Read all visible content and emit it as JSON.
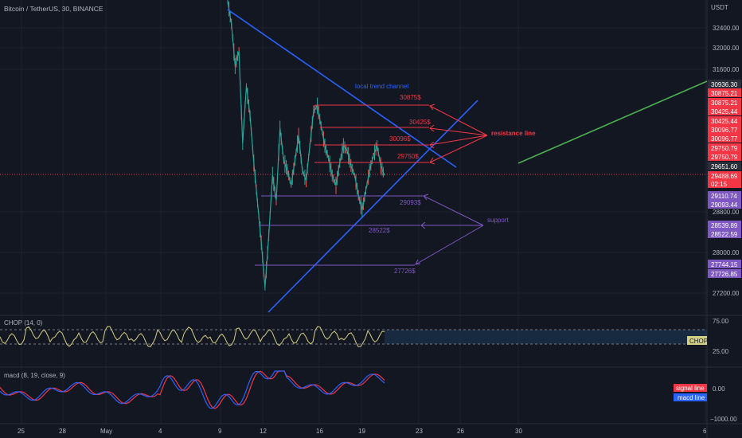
{
  "title": "Bitcoin / TetherUS, 30, BINANCE",
  "currency": "USDT",
  "colors": {
    "background": "#131722",
    "up": "#26a69a",
    "down": "#ef5350",
    "trend": "#2962ff",
    "resistance": "#f23645",
    "support": "#7e57c2",
    "green_line": "#4caf50",
    "chop": "#d4d083",
    "macd": "#2962ff",
    "signal": "#f23645"
  },
  "chart_data": {
    "type": "line",
    "price_axis": {
      "ylim": [
        26900,
        33100
      ],
      "ticks": [
        "32400.00",
        "32000.00",
        "31600.00",
        "28800.00",
        "28000.00",
        "27200.00"
      ],
      "badges": [
        {
          "label": "30936.30",
          "color": "#2a2e39"
        },
        {
          "label": "30875.21",
          "color": "#f23645"
        },
        {
          "label": "30875.21",
          "color": "#f23645"
        },
        {
          "label": "30425.44",
          "color": "#f23645"
        },
        {
          "label": "30425.44",
          "color": "#f23645"
        },
        {
          "label": "30096.77",
          "color": "#f23645"
        },
        {
          "label": "30096.77",
          "color": "#f23645"
        },
        {
          "label": "29750.79",
          "color": "#f23645"
        },
        {
          "label": "29750.79",
          "color": "#f23645"
        },
        {
          "label": "29651.60",
          "color": "#2a2e39"
        },
        {
          "label": "29488.69",
          "color": "#f23645"
        },
        {
          "label": "02:15",
          "color": "#f23645"
        },
        {
          "label": "29110.74",
          "color": "#7e57c2"
        },
        {
          "label": "29093.44",
          "color": "#7e57c2"
        },
        {
          "label": "28539.89",
          "color": "#7e57c2"
        },
        {
          "label": "28522.59",
          "color": "#7e57c2"
        },
        {
          "label": "27744.15",
          "color": "#7e57c2"
        },
        {
          "label": "27726.85",
          "color": "#7e57c2"
        }
      ]
    },
    "x_axis": {
      "ticks": [
        "25",
        "28",
        "May",
        "4",
        "9",
        "12",
        "16",
        "19",
        "23",
        "26",
        "30",
        "6"
      ]
    },
    "series": [
      {
        "values": [
          33150,
          32700,
          31850,
          32150,
          30300,
          31450,
          30850,
          29900,
          29100,
          28300,
          27400,
          28450,
          29650,
          29150,
          30600,
          29950,
          29750,
          29450,
          29950,
          30450,
          29750,
          29550,
          30250,
          30950,
          31050,
          30650,
          30250,
          30000,
          29650,
          29450,
          29900,
          30250,
          30150,
          29850,
          29650,
          29250,
          28950,
          29350,
          29750,
          30050,
          30250,
          29850,
          29650
        ]
      }
    ],
    "resistance_levels": [
      {
        "label": "30875$",
        "value": 30875.21
      },
      {
        "label": "30425$",
        "value": 30425.44
      },
      {
        "label": "30096$",
        "value": 30096.77
      },
      {
        "label": "29750$",
        "value": 29750.79
      }
    ],
    "support_levels": [
      {
        "label": "29093$",
        "value": 29093.44
      },
      {
        "label": "28522$",
        "value": 28522.59
      },
      {
        "label": "27726$",
        "value": 27726.85
      }
    ],
    "annotations": {
      "resistance": "resistance line",
      "support": "support",
      "trend": "local trend channel"
    },
    "chop": {
      "title": "CHOP (14, 0)",
      "ticks": [
        "75.00",
        "25.00"
      ],
      "label": "CHOP"
    },
    "macd": {
      "title": "macd (8, 19, close, 9)",
      "ticks": [
        "0.00",
        "−1000.00"
      ],
      "legend": [
        "signal line",
        "macd line"
      ]
    }
  }
}
